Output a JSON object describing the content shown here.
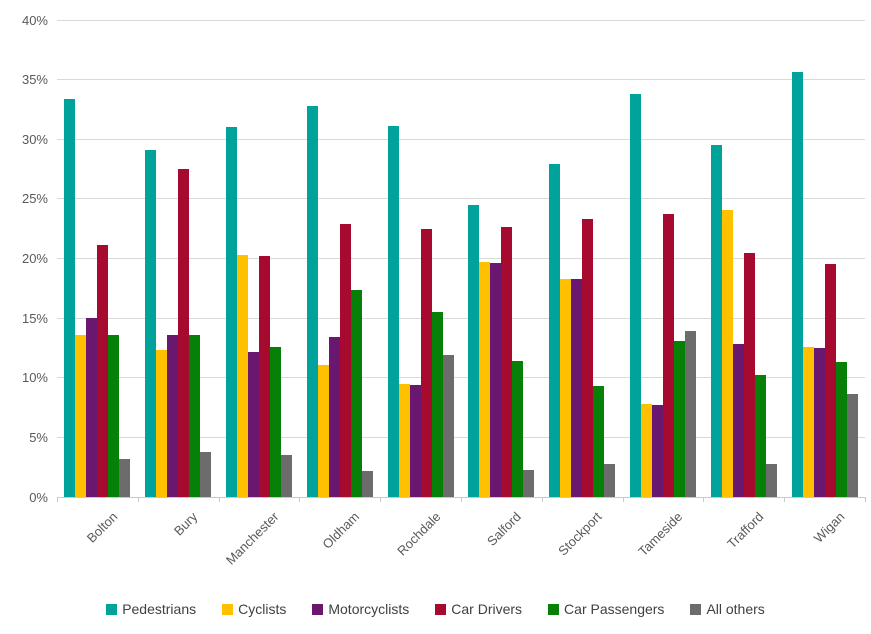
{
  "chart_data": {
    "type": "bar",
    "title": "",
    "categories": [
      "Bolton",
      "Bury",
      "Manchester",
      "Oldham",
      "Rochdale",
      "Salford",
      "Stockport",
      "Tameside",
      "Trafford",
      "Wigan"
    ],
    "series": [
      {
        "name": "Pedestrians",
        "color": "#00A39B",
        "values": [
          33.4,
          29.1,
          31.0,
          32.8,
          31.1,
          24.5,
          27.9,
          33.8,
          29.5,
          35.6
        ]
      },
      {
        "name": "Cyclists",
        "color": "#FFC000",
        "values": [
          13.6,
          12.3,
          20.3,
          11.1,
          9.5,
          19.7,
          18.3,
          7.8,
          24.1,
          12.6
        ]
      },
      {
        "name": "Motorcyclists",
        "color": "#6A176F",
        "values": [
          15.0,
          13.6,
          12.2,
          13.4,
          9.4,
          19.6,
          18.3,
          7.7,
          12.8,
          12.5
        ]
      },
      {
        "name": "Car Drivers",
        "color": "#A60A2F",
        "values": [
          21.1,
          27.5,
          20.2,
          22.9,
          22.5,
          22.6,
          23.3,
          23.7,
          20.5,
          19.5
        ]
      },
      {
        "name": "Car Passengers",
        "color": "#078007",
        "values": [
          13.6,
          13.6,
          12.6,
          17.4,
          15.5,
          11.4,
          9.3,
          13.1,
          10.2,
          11.3
        ]
      },
      {
        "name": "All others",
        "color": "#6C6C6C",
        "values": [
          3.2,
          3.8,
          3.5,
          2.2,
          11.9,
          2.3,
          2.8,
          13.9,
          2.8,
          8.6
        ]
      }
    ],
    "xlabel": "",
    "ylabel": "",
    "ylim": [
      0,
      40
    ],
    "ytick_step": 5,
    "ytick_labels": [
      "0%",
      "5%",
      "10%",
      "15%",
      "20%",
      "25%",
      "30%",
      "35%",
      "40%"
    ],
    "grid": true,
    "legend_position": "bottom"
  },
  "colors": {
    "axis_text": "#595959",
    "legend_text": "#404040",
    "gridline": "#D9D9D9",
    "axis_line": "#C9C9C9",
    "background": "#FFFFFF"
  }
}
